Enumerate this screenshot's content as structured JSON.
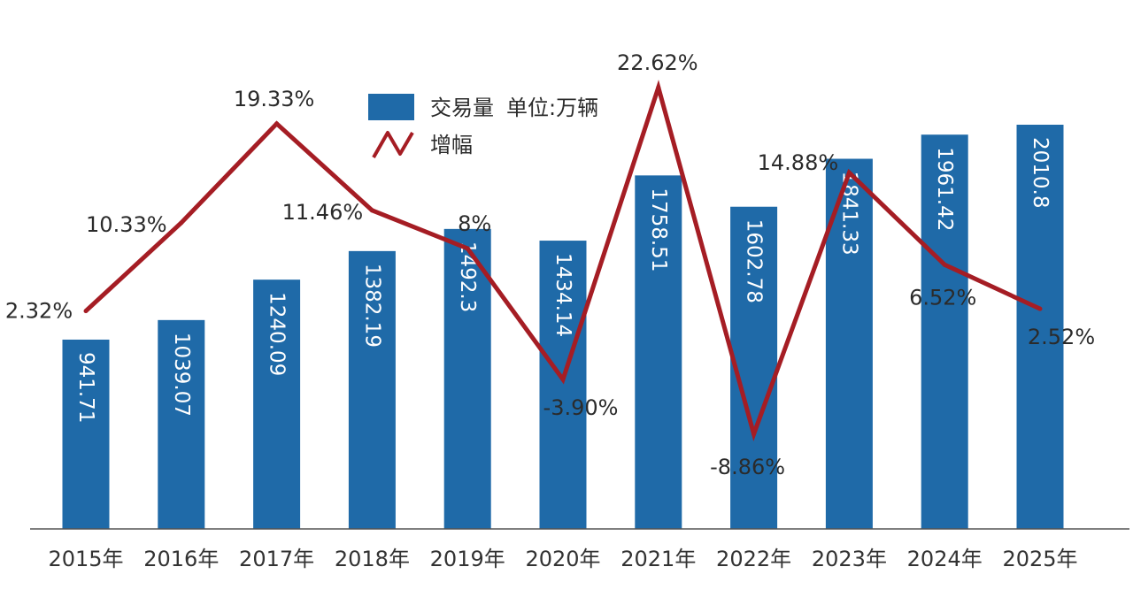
{
  "chart_data": {
    "type": "bar",
    "categories": [
      "2015年",
      "2016年",
      "2017年",
      "2018年",
      "2019年",
      "2020年",
      "2021年",
      "2022年",
      "2023年",
      "2024年",
      "2025年"
    ],
    "series": [
      {
        "name": "交易量 单位:万辆",
        "type": "bar",
        "values": [
          941.71,
          1039.07,
          1240.09,
          1382.19,
          1492.3,
          1434.14,
          1758.51,
          1602.78,
          1841.33,
          1961.42,
          2010.8
        ],
        "labels": [
          "941.71",
          "1039.07",
          "1240.09",
          "1382.19",
          "1492.3",
          "1434.14",
          "1758.51",
          "1602.78",
          "1841.33",
          "1961.42",
          "2010.8"
        ],
        "color": "#1f6aa8"
      },
      {
        "name": "增幅",
        "type": "line",
        "values": [
          2.32,
          10.33,
          19.33,
          11.46,
          8,
          -3.9,
          22.62,
          -8.86,
          14.88,
          6.52,
          2.52
        ],
        "labels": [
          "2.32%",
          "10.33%",
          "19.33%",
          "11.46%",
          "8%",
          "-3.90%",
          "22.62%",
          "-8.86%",
          "14.88%",
          "6.52%",
          "2.52%"
        ],
        "color": "#a51d24"
      }
    ],
    "legend": [
      {
        "label": "交易量",
        "unit": "单位:万辆",
        "icon": "blue-rect"
      },
      {
        "label": "增幅",
        "icon": "zigzag-line"
      }
    ],
    "legend_position": "top-center",
    "ylim_bar": [
      0,
      2100
    ],
    "ylim_line": [
      -12,
      25
    ],
    "grid": false
  }
}
